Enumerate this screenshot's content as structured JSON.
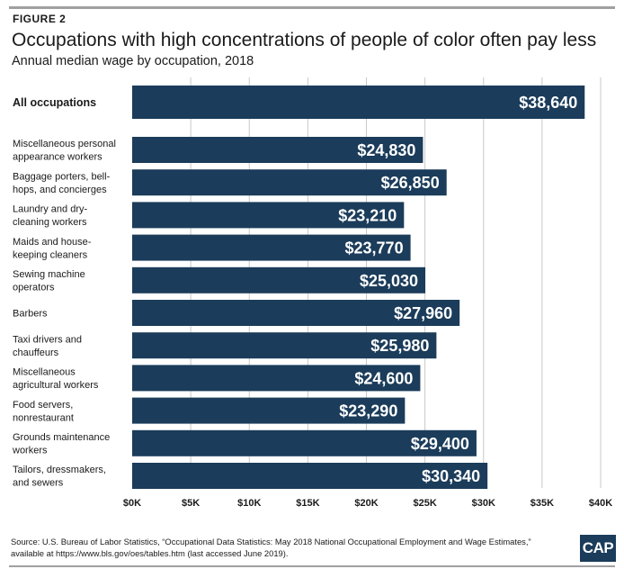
{
  "figure_label": "FIGURE 2",
  "title": "Occupations with high concentrations of people of color often pay less",
  "subtitle": "Annual median wage by occupation, 2018",
  "source": "Source: U.S. Bureau of Labor Statistics, “Occupational Data Statistics: May 2018 National Occupational Employment and Wage Estimates,” available at https://www.bls.gov/oes/tables.htm (last accessed June 2019).",
  "logo": "CAP",
  "colors": {
    "bar": "#1b3c5a",
    "grid": "#c8c8c8",
    "label_text": "#ffffff"
  },
  "chart_data": {
    "type": "bar",
    "orientation": "horizontal",
    "categories": [
      [
        "All occupations"
      ],
      [
        "Miscellaneous personal",
        "appearance workers"
      ],
      [
        "Baggage porters, bell-",
        "hops, and concierges"
      ],
      [
        "Laundry and dry-",
        "cleaning workers"
      ],
      [
        "Maids and house-",
        "keeping cleaners"
      ],
      [
        "Sewing machine",
        "operators"
      ],
      [
        "Barbers"
      ],
      [
        "Taxi drivers and",
        "chauffeurs"
      ],
      [
        "Miscellaneous",
        "agricultural workers"
      ],
      [
        "Food servers,",
        "nonrestaurant"
      ],
      [
        "Grounds maintenance",
        "workers"
      ],
      [
        "Tailors, dressmakers,",
        "and sewers"
      ]
    ],
    "values": [
      38640,
      24830,
      26850,
      23210,
      23770,
      25030,
      27960,
      25980,
      24600,
      23290,
      29400,
      30340
    ],
    "value_labels": [
      "$38,640",
      "$24,830",
      "$26,850",
      "$23,210",
      "$23,770",
      "$25,030",
      "$27,960",
      "$25,980",
      "$24,600",
      "$23,290",
      "$29,400",
      "$30,340"
    ],
    "highlight_first": true,
    "xlim": [
      0,
      40000
    ],
    "xticks": [
      0,
      5000,
      10000,
      15000,
      20000,
      25000,
      30000,
      35000,
      40000
    ],
    "xtick_labels": [
      "$0K",
      "$5K",
      "$10K",
      "$15K",
      "$20K",
      "$25K",
      "$30K",
      "$35K",
      "$40K"
    ],
    "grid": true
  }
}
